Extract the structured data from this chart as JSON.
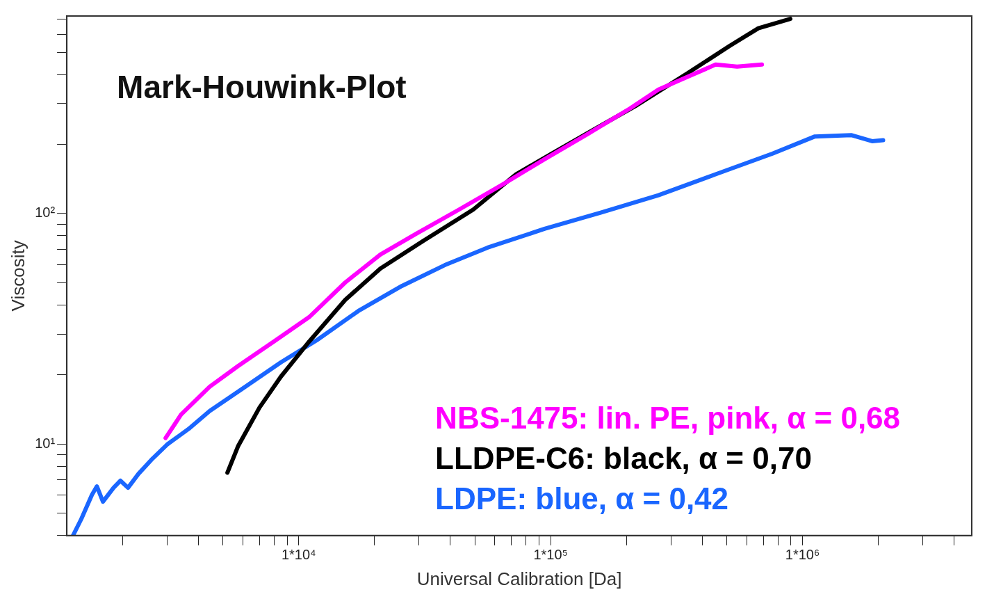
{
  "chart_data": {
    "type": "line",
    "title": "Mark-Houwink-Plot",
    "xlabel": "Universal Calibration [Da]",
    "ylabel": "Viscosity",
    "log": "xy",
    "grid": false,
    "legend": "bottom right",
    "marker": "none",
    "line_style": "solid",
    "xlim": [
      1200,
      4700000
    ],
    "xticks": [
      {
        "value": 2000,
        "label": null
      },
      {
        "value": 3000,
        "label": null
      },
      {
        "value": 4000,
        "label": null
      },
      {
        "value": 5000,
        "label": null
      },
      {
        "value": 6000,
        "label": null
      },
      {
        "value": 7000,
        "label": null
      },
      {
        "value": 8000,
        "label": null
      },
      {
        "value": 9000,
        "label": null
      },
      {
        "value": 10000,
        "label": "1*10⁴"
      },
      {
        "value": 20000,
        "label": null
      },
      {
        "value": 30000,
        "label": null
      },
      {
        "value": 40000,
        "label": null
      },
      {
        "value": 50000,
        "label": null
      },
      {
        "value": 60000,
        "label": null
      },
      {
        "value": 70000,
        "label": null
      },
      {
        "value": 80000,
        "label": null
      },
      {
        "value": 90000,
        "label": null
      },
      {
        "value": 100000,
        "label": "1*10⁵"
      },
      {
        "value": 200000,
        "label": null
      },
      {
        "value": 300000,
        "label": null
      },
      {
        "value": 400000,
        "label": null
      },
      {
        "value": 500000,
        "label": null
      },
      {
        "value": 600000,
        "label": null
      },
      {
        "value": 700000,
        "label": null
      },
      {
        "value": 800000,
        "label": null
      },
      {
        "value": 900000,
        "label": null
      },
      {
        "value": 1000000,
        "label": "1*10⁶"
      },
      {
        "value": 2000000,
        "label": null
      },
      {
        "value": 3000000,
        "label": null
      },
      {
        "value": 4000000,
        "label": null
      }
    ],
    "ylim": [
      4,
      720
    ],
    "yticks": [
      {
        "value": 4,
        "label": null
      },
      {
        "value": 5,
        "label": null
      },
      {
        "value": 6,
        "label": null
      },
      {
        "value": 7,
        "label": null
      },
      {
        "value": 8,
        "label": null
      },
      {
        "value": 9,
        "label": null
      },
      {
        "value": 10,
        "label": "10¹"
      },
      {
        "value": 20,
        "label": null
      },
      {
        "value": 30,
        "label": null
      },
      {
        "value": 40,
        "label": null
      },
      {
        "value": 50,
        "label": null
      },
      {
        "value": 60,
        "label": null
      },
      {
        "value": 70,
        "label": null
      },
      {
        "value": 80,
        "label": null
      },
      {
        "value": 90,
        "label": null
      },
      {
        "value": 100,
        "label": "10²"
      },
      {
        "value": 200,
        "label": null
      },
      {
        "value": 300,
        "label": null
      },
      {
        "value": 400,
        "label": null
      },
      {
        "value": 500,
        "label": null
      },
      {
        "value": 600,
        "label": null
      },
      {
        "value": 700,
        "label": null
      }
    ],
    "series": [
      {
        "name": "NBS-1475: lin. PE, pink, α = 0,68",
        "color": "#ff00ff",
        "x": [
          2960,
          3410,
          4430,
          5750,
          7960,
          11000,
          15300,
          21100,
          29300,
          43300,
          64000,
          94600,
          140000,
          207000,
          268000,
          348000,
          452000,
          550000,
          690000
        ],
        "values": [
          10.6,
          13.4,
          17.7,
          21.8,
          27.8,
          35.5,
          50.2,
          66.4,
          81.7,
          104,
          133,
          172,
          221,
          286,
          345,
          391,
          443,
          434,
          443
        ]
      },
      {
        "name": "LLDPE-C6: black, α = 0,70",
        "color": "#000000",
        "x": [
          5210,
          5750,
          6990,
          8500,
          11000,
          15300,
          21100,
          31300,
          49300,
          72900,
          101000,
          149000,
          221000,
          348000,
          515000,
          668000,
          895000
        ],
        "values": [
          7.5,
          9.8,
          14.4,
          19.6,
          27.8,
          42.2,
          57.7,
          76.2,
          104,
          148,
          182,
          232,
          296,
          405,
          535,
          637,
          700
        ]
      },
      {
        "name": "LDPE: blue, α = 0,42",
        "color": "#1a66ff",
        "x": [
          1270,
          1370,
          1510,
          1580,
          1670,
          1840,
          1960,
          2100,
          2310,
          2630,
          3000,
          3650,
          4430,
          6130,
          8500,
          11800,
          17400,
          25700,
          38000,
          56200,
          94600,
          159000,
          268000,
          452000,
          761000,
          1120000,
          1560000,
          1890000,
          2090000
        ],
        "values": [
          4.0,
          4.72,
          6.01,
          6.54,
          5.61,
          6.45,
          6.92,
          6.45,
          7.41,
          8.64,
          9.93,
          11.6,
          13.9,
          17.7,
          22.6,
          28.2,
          38.0,
          48.5,
          59.7,
          71.1,
          85.8,
          101,
          120,
          148,
          182,
          216,
          219,
          206,
          208
        ]
      }
    ]
  }
}
